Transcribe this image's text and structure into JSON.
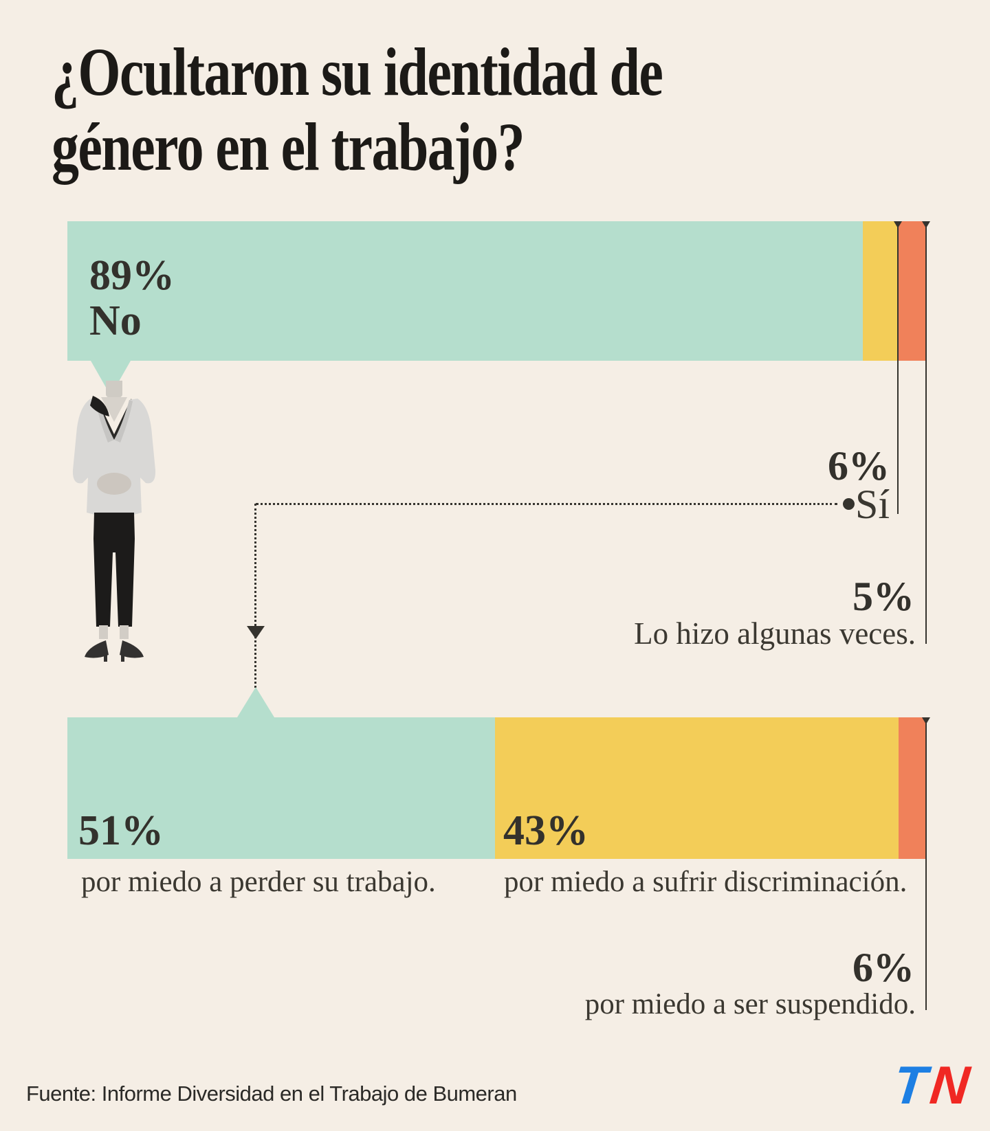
{
  "title": {
    "line1": "¿Ocultaron su identidad de",
    "line2": "género en el trabajo?"
  },
  "colors": {
    "background": "#f5eee5",
    "mint": "#b5decd",
    "yellow": "#f3cd58",
    "orange": "#f0815a",
    "title_ink": "#1c1a17",
    "value_text": "#33312c",
    "label_text": "#3b3831",
    "connector_line": "#35332e",
    "logo_blue": "#1d7fe3",
    "logo_red": "#f02823"
  },
  "chart_data": [
    {
      "type": "bar",
      "orientation": "horizontal-stacked",
      "position": "top",
      "title": "¿Ocultaron su identidad de género en el trabajo?",
      "units": "%",
      "total_pct": 100,
      "segments": [
        {
          "label": "No",
          "value": 89,
          "value_label": "89%",
          "color": "#b5decd",
          "visual_pct": 92.6
        },
        {
          "label": "Sí",
          "value": 6,
          "value_label": "6%",
          "color": "#f3cd58",
          "visual_pct": 4.1
        },
        {
          "label": "Lo hizo algunas veces.",
          "value": 5,
          "value_label": "5%",
          "color": "#f0815a",
          "visual_pct": 3.3
        }
      ]
    },
    {
      "type": "bar",
      "orientation": "horizontal-stacked",
      "position": "bottom",
      "units": "%",
      "total_pct": 100,
      "segments": [
        {
          "label": "por miedo a perder su trabajo.",
          "value": 51,
          "value_label": "51%",
          "color": "#b5decd",
          "visual_pct": 49.8
        },
        {
          "label": "por miedo a sufrir discriminación.",
          "value": 43,
          "value_label": "43%",
          "color": "#f3cd58",
          "visual_pct": 47.0
        },
        {
          "label": "por miedo a ser suspendido.",
          "value": 6,
          "value_label": "6%",
          "color": "#f0815a",
          "visual_pct": 3.2
        }
      ]
    }
  ],
  "footer": {
    "source": "Fuente: Informe Diversidad en el Trabajo de Bumeran",
    "logo": {
      "letter_t": "T",
      "letter_n": "N"
    }
  }
}
